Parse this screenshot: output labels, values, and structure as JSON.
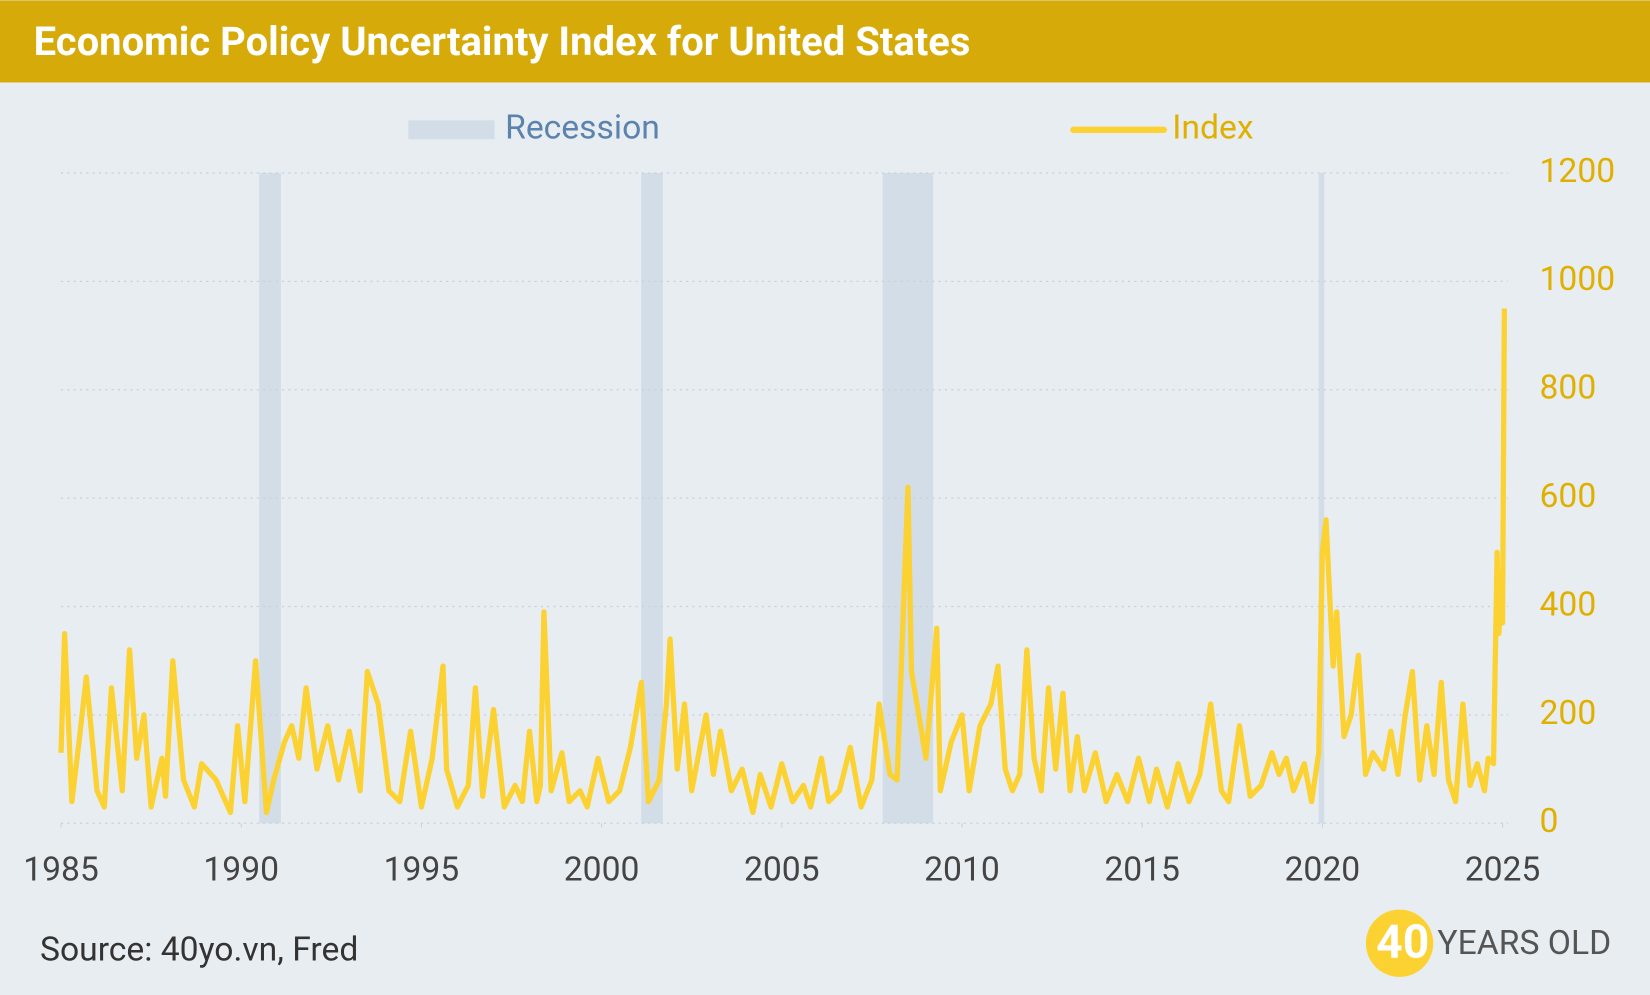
{
  "chart_data": {
    "type": "line",
    "title": "Economic Policy Uncertainty Index for United States",
    "source": "Source: 40yo.vn, Fred",
    "logo": {
      "number": "40",
      "text": "YEARS OLD"
    },
    "xlim": [
      1985,
      2025.15
    ],
    "xticks": [
      1985,
      1990,
      1995,
      2000,
      2005,
      2010,
      2015,
      2020,
      2025
    ],
    "ylim": [
      0,
      1200
    ],
    "yticks": [
      0,
      200,
      400,
      600,
      800,
      1000,
      1200
    ],
    "y_axis_side": "right",
    "grid": true,
    "shading": {
      "name": "Recession",
      "color": "#d2dde7",
      "spans": [
        [
          1990.5,
          1991.1
        ],
        [
          2001.1,
          2001.7
        ],
        [
          2007.8,
          2009.2
        ],
        [
          2019.9,
          2020.05
        ]
      ]
    },
    "series": [
      {
        "name": "Index",
        "color": "#fbd232",
        "x": [
          1985.0,
          1985.1,
          1985.3,
          1985.5,
          1985.7,
          1986.0,
          1986.2,
          1986.4,
          1986.7,
          1986.9,
          1987.1,
          1987.3,
          1987.5,
          1987.8,
          1987.9,
          1988.1,
          1988.4,
          1988.7,
          1988.9,
          1989.3,
          1989.7,
          1989.9,
          1990.1,
          1990.4,
          1990.7,
          1990.9,
          1991.2,
          1991.4,
          1991.6,
          1991.8,
          1992.1,
          1992.4,
          1992.7,
          1993.0,
          1993.3,
          1993.5,
          1993.8,
          1994.1,
          1994.4,
          1994.7,
          1995.0,
          1995.3,
          1995.6,
          1995.7,
          1996.0,
          1996.3,
          1996.5,
          1996.7,
          1997.0,
          1997.3,
          1997.6,
          1997.8,
          1998.0,
          1998.2,
          1998.3,
          1998.4,
          1998.6,
          1998.9,
          1999.1,
          1999.4,
          1999.6,
          1999.9,
          2000.2,
          2000.5,
          2000.8,
          2001.1,
          2001.3,
          2001.6,
          2001.8,
          2001.9,
          2002.1,
          2002.3,
          2002.5,
          2002.7,
          2002.9,
          2003.1,
          2003.3,
          2003.6,
          2003.9,
          2004.2,
          2004.4,
          2004.7,
          2005.0,
          2005.3,
          2005.6,
          2005.8,
          2006.1,
          2006.3,
          2006.6,
          2006.9,
          2007.2,
          2007.5,
          2007.7,
          2008.0,
          2008.2,
          2008.5,
          2008.6,
          2008.8,
          2009.0,
          2009.3,
          2009.4,
          2009.7,
          2010.0,
          2010.2,
          2010.5,
          2010.8,
          2011.0,
          2011.2,
          2011.4,
          2011.6,
          2011.8,
          2012.0,
          2012.2,
          2012.4,
          2012.6,
          2012.8,
          2013.0,
          2013.2,
          2013.4,
          2013.7,
          2014.0,
          2014.3,
          2014.6,
          2014.9,
          2015.2,
          2015.4,
          2015.7,
          2016.0,
          2016.3,
          2016.6,
          2016.9,
          2017.2,
          2017.4,
          2017.7,
          2018.0,
          2018.3,
          2018.6,
          2018.8,
          2019.0,
          2019.2,
          2019.5,
          2019.7,
          2019.9,
          2020.0,
          2020.1,
          2020.3,
          2020.4,
          2020.6,
          2020.8,
          2021.0,
          2021.2,
          2021.4,
          2021.7,
          2021.9,
          2022.1,
          2022.3,
          2022.5,
          2022.7,
          2022.9,
          2023.1,
          2023.3,
          2023.5,
          2023.7,
          2023.9,
          2024.1,
          2024.3,
          2024.5,
          2024.6,
          2024.75,
          2024.85,
          2024.9,
          2024.95,
          2025.0,
          2025.05
        ],
        "values": [
          130,
          350,
          40,
          150,
          270,
          60,
          30,
          250,
          60,
          320,
          120,
          200,
          30,
          120,
          50,
          300,
          80,
          30,
          110,
          80,
          20,
          180,
          40,
          300,
          20,
          80,
          150,
          180,
          120,
          250,
          100,
          180,
          80,
          170,
          60,
          280,
          220,
          60,
          40,
          170,
          30,
          120,
          290,
          100,
          30,
          70,
          250,
          50,
          210,
          30,
          70,
          40,
          170,
          40,
          70,
          390,
          60,
          130,
          40,
          60,
          30,
          120,
          40,
          60,
          140,
          260,
          40,
          80,
          220,
          340,
          100,
          220,
          60,
          130,
          200,
          90,
          170,
          60,
          100,
          20,
          90,
          30,
          110,
          40,
          70,
          30,
          120,
          40,
          60,
          140,
          30,
          80,
          220,
          90,
          80,
          620,
          280,
          200,
          120,
          360,
          60,
          150,
          200,
          60,
          180,
          220,
          290,
          100,
          60,
          90,
          320,
          120,
          60,
          250,
          100,
          240,
          60,
          160,
          60,
          130,
          40,
          90,
          40,
          120,
          40,
          100,
          30,
          110,
          40,
          90,
          220,
          60,
          40,
          180,
          50,
          70,
          130,
          90,
          120,
          60,
          110,
          40,
          130,
          500,
          560,
          290,
          390,
          160,
          200,
          310,
          90,
          130,
          100,
          170,
          90,
          200,
          280,
          80,
          180,
          90,
          260,
          80,
          40,
          220,
          70,
          110,
          60,
          120,
          110,
          500,
          350,
          430,
          370,
          950
        ]
      }
    ]
  }
}
